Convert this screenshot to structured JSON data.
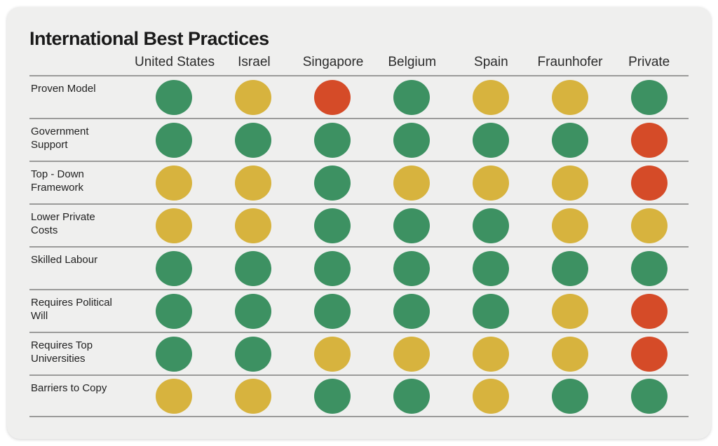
{
  "title": "International Best Practices",
  "chart_data": {
    "type": "table",
    "title": "International Best Practices",
    "columns": [
      "United States",
      "Israel",
      "Singapore",
      "Belgium",
      "Spain",
      "Fraunhofer",
      "Private"
    ],
    "rows": [
      {
        "label": "Proven Model",
        "ratings": [
          "green",
          "yellow",
          "red",
          "green",
          "yellow",
          "yellow",
          "green"
        ]
      },
      {
        "label": "Government Support",
        "ratings": [
          "green",
          "green",
          "green",
          "green",
          "green",
          "green",
          "red"
        ]
      },
      {
        "label": "Top - Down Framework",
        "ratings": [
          "yellow",
          "yellow",
          "green",
          "yellow",
          "yellow",
          "yellow",
          "red"
        ]
      },
      {
        "label": "Lower Private Costs",
        "ratings": [
          "yellow",
          "yellow",
          "green",
          "green",
          "green",
          "yellow",
          "yellow"
        ]
      },
      {
        "label": "Skilled Labour",
        "ratings": [
          "green",
          "green",
          "green",
          "green",
          "green",
          "green",
          "green"
        ]
      },
      {
        "label": "Requires Political Will",
        "ratings": [
          "green",
          "green",
          "green",
          "green",
          "green",
          "yellow",
          "red"
        ]
      },
      {
        "label": "Requires Top Universities",
        "ratings": [
          "green",
          "green",
          "yellow",
          "yellow",
          "yellow",
          "yellow",
          "red"
        ]
      },
      {
        "label": "Barriers to Copy",
        "ratings": [
          "yellow",
          "yellow",
          "green",
          "green",
          "yellow",
          "green",
          "green"
        ]
      }
    ],
    "legend_colors": {
      "green": "#3d9162",
      "yellow": "#d7b33e",
      "red": "#d54b28"
    },
    "layout_hints": {
      "grid": "horizontal row dividers only",
      "card_background": "#efefee",
      "divider_color": "#9b9b9a"
    }
  }
}
